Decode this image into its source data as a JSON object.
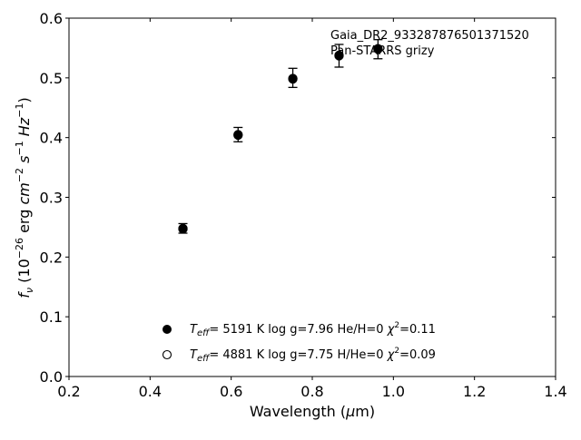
{
  "chart_data": {
    "type": "scatter",
    "title": "",
    "xlabel": "Wavelength (μm)",
    "ylabel": "f_ν (10^-26 erg cm^-2 s^-1 Hz^-1)",
    "xlim": [
      0.2,
      1.4
    ],
    "ylim": [
      0.0,
      0.6
    ],
    "xticks": [
      0.2,
      0.4,
      0.6,
      0.8,
      1.0,
      1.2,
      1.4
    ],
    "yticks": [
      0.0,
      0.1,
      0.2,
      0.3,
      0.4,
      0.5,
      0.6
    ],
    "xtick_labels": [
      "0.2",
      "0.4",
      "0.6",
      "0.8",
      "1.0",
      "1.2",
      "1.4"
    ],
    "ytick_labels": [
      "0.0",
      "0.1",
      "0.2",
      "0.3",
      "0.4",
      "0.5",
      "0.6"
    ],
    "grid": false,
    "annotations": [
      "Gaia_DR2_933287876501371520",
      "Pan-STARRS grizy"
    ],
    "series": [
      {
        "marker": "errorbar",
        "color": "#000000",
        "points": [
          {
            "x": 0.481,
            "y": 0.248,
            "err": 0.008
          },
          {
            "x": 0.617,
            "y": 0.405,
            "err": 0.012
          },
          {
            "x": 0.752,
            "y": 0.5,
            "err": 0.016
          },
          {
            "x": 0.866,
            "y": 0.537,
            "err": 0.019
          },
          {
            "x": 0.962,
            "y": 0.548,
            "err": 0.016
          }
        ]
      },
      {
        "marker": "filled-circle",
        "color": "#000000",
        "points": [
          {
            "x": 0.481,
            "y": 0.248
          },
          {
            "x": 0.617,
            "y": 0.405
          },
          {
            "x": 0.752,
            "y": 0.498
          },
          {
            "x": 0.866,
            "y": 0.538
          },
          {
            "x": 0.962,
            "y": 0.549
          }
        ]
      },
      {
        "marker": "open-circle",
        "color": "#000000",
        "points": [
          {
            "x": 0.481,
            "y": 0.247
          },
          {
            "x": 0.617,
            "y": 0.404
          },
          {
            "x": 0.752,
            "y": 0.499
          },
          {
            "x": 0.866,
            "y": 0.537
          },
          {
            "x": 0.962,
            "y": 0.548
          }
        ]
      }
    ],
    "legend": {
      "placement": "lower-center",
      "entries": [
        {
          "marker": "filled-circle",
          "teff": "5191 K",
          "logg": "log g=7.96",
          "comp": "He/H=0",
          "chi_value": "=0.11"
        },
        {
          "marker": "open-circle",
          "teff": "4881 K",
          "logg": "log g=7.75",
          "comp": "H/He=0",
          "chi_value": "=0.09"
        }
      ]
    }
  }
}
